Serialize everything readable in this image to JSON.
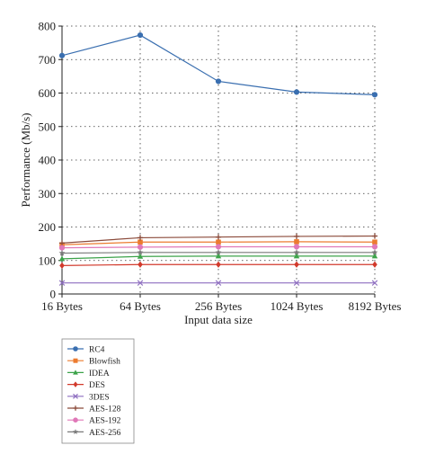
{
  "chart_data": {
    "type": "line",
    "title": "",
    "xlabel": "Input data size",
    "ylabel": "Performance (Mb/s)",
    "categories": [
      "16 Bytes",
      "64 Bytes",
      "256 Bytes",
      "1024 Bytes",
      "8192 Bytes"
    ],
    "ylim": [
      0,
      800
    ],
    "yticks": [
      0,
      100,
      200,
      300,
      400,
      500,
      600,
      700,
      800
    ],
    "grid": true,
    "legend_position": "bottom-left",
    "series": [
      {
        "name": "RC4",
        "values": [
          712,
          773,
          635,
          603,
          595
        ],
        "color": "#3a6fb0",
        "marker": "circle"
      },
      {
        "name": "Blowfish",
        "values": [
          147,
          155,
          155,
          156,
          155
        ],
        "color": "#ec7b2f",
        "marker": "square"
      },
      {
        "name": "IDEA",
        "values": [
          105,
          112,
          113,
          113,
          113
        ],
        "color": "#3da34a",
        "marker": "triangle"
      },
      {
        "name": "DES",
        "values": [
          85,
          88,
          88,
          88,
          88
        ],
        "color": "#d23a2c",
        "marker": "diamond"
      },
      {
        "name": "3DES",
        "values": [
          33,
          33,
          33,
          33,
          33
        ],
        "color": "#8e6fc0",
        "marker": "x"
      },
      {
        "name": "AES-128",
        "values": [
          152,
          168,
          170,
          172,
          173
        ],
        "color": "#8b4a3a",
        "marker": "plus"
      },
      {
        "name": "AES-192",
        "values": [
          138,
          140,
          141,
          141,
          141
        ],
        "color": "#e078b8",
        "marker": "circle"
      },
      {
        "name": "AES-256",
        "values": [
          122,
          124,
          124,
          124,
          124
        ],
        "color": "#7a7a7a",
        "marker": "star"
      }
    ]
  }
}
